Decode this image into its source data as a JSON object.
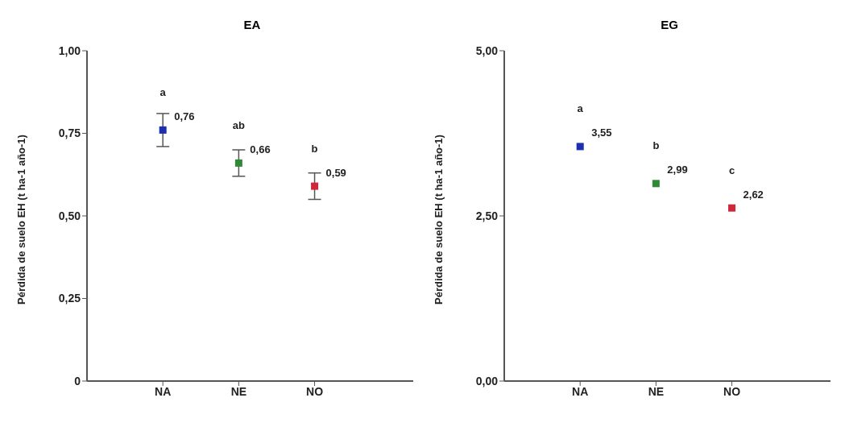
{
  "chart_data": [
    {
      "type": "scatter",
      "title": "EA",
      "ylabel": "Pérdida de suelo EH (t ha-1 año-1)",
      "categories": [
        "NA",
        "NE",
        "NO"
      ],
      "series": [
        {
          "values": [
            0.76,
            0.66,
            0.59
          ],
          "value_labels": [
            "0,76",
            "0,66",
            "0,59"
          ],
          "colors": [
            "#1c2fb0",
            "#2f8a38",
            "#d0253a"
          ],
          "errors": [
            0.05,
            0.04,
            0.04
          ]
        }
      ],
      "ylim": [
        0,
        1
      ],
      "yticks": [
        0,
        {
          "value": 0.25,
          "label": "0,25"
        },
        {
          "value": 0.5,
          "label": "0,50"
        },
        {
          "value": 0.75,
          "label": "0,75"
        },
        {
          "value": 1,
          "label": "1,00"
        }
      ],
      "marker": "square",
      "annotations": [
        "a",
        "ab",
        "b"
      ]
    },
    {
      "type": "scatter",
      "title": "EG",
      "ylabel": "Pérdida de suelo EH (t ha-1 año-1)",
      "categories": [
        "NA",
        "NE",
        "NO"
      ],
      "series": [
        {
          "values": [
            3.55,
            2.99,
            2.62
          ],
          "value_labels": [
            "3,55",
            "2,99",
            "2,62"
          ],
          "colors": [
            "#1c2fb0",
            "#2f8a38",
            "#d0253a"
          ]
        }
      ],
      "ylim": [
        0,
        5
      ],
      "yticks": [
        {
          "value": 0,
          "label": "0,00"
        },
        {
          "value": 2.5,
          "label": "2,50"
        },
        {
          "value": 5,
          "label": "5,00"
        }
      ],
      "marker": "square",
      "annotations": [
        "a",
        "b",
        "c"
      ]
    }
  ]
}
